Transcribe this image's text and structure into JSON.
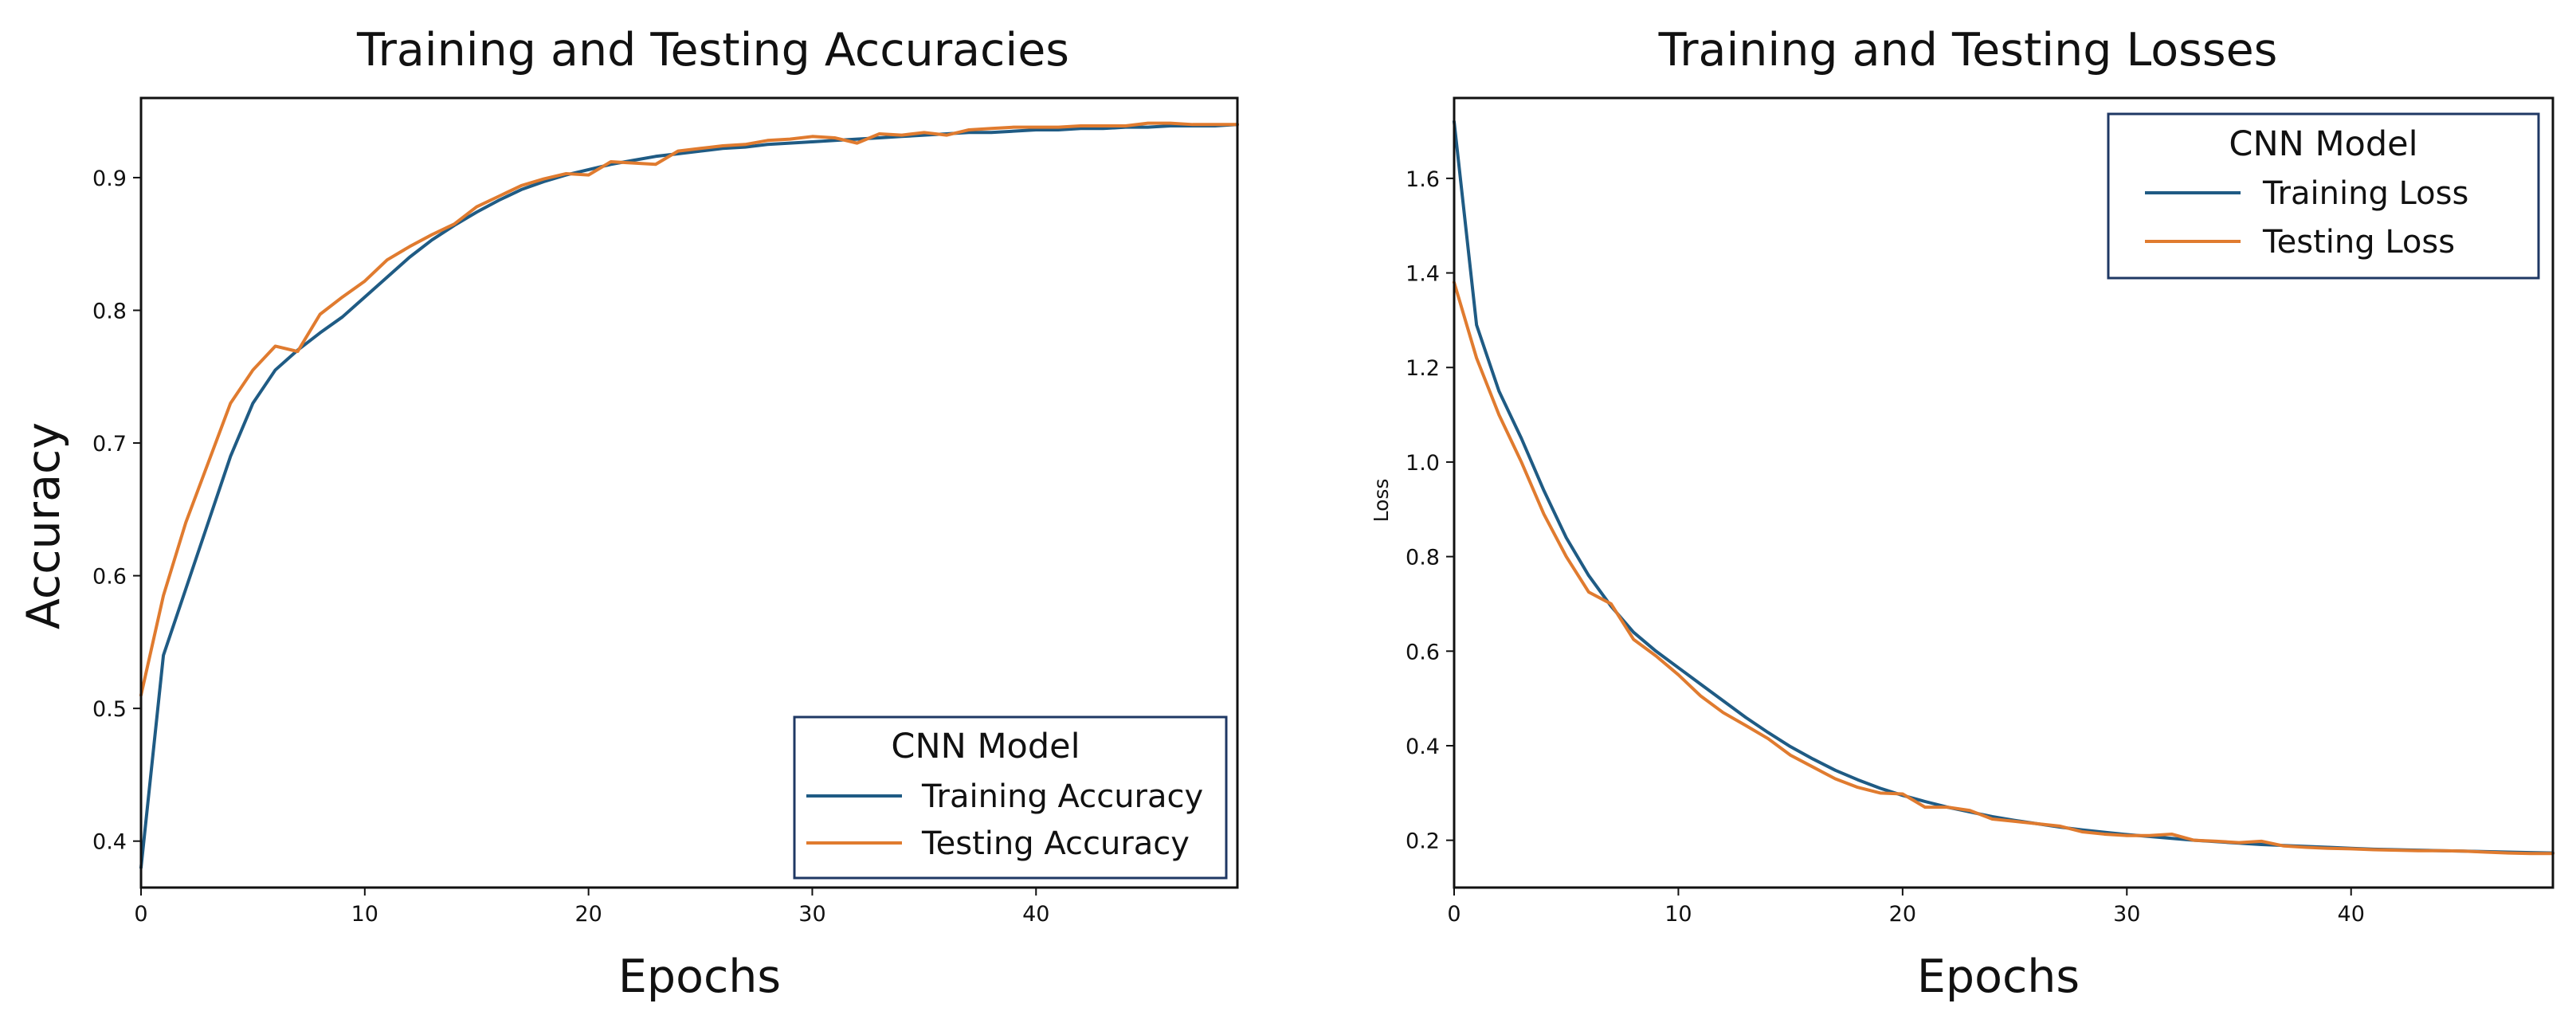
{
  "chart_data": [
    {
      "type": "line",
      "title": "Training and Testing Accuracies",
      "xlabel": "Epochs",
      "ylabel": "Accuracy",
      "xlim": [
        0,
        49
      ],
      "ylim": [
        0.365,
        0.96
      ],
      "xticks": [
        0,
        10,
        20,
        30,
        40
      ],
      "yticks": [
        0.4,
        0.5,
        0.6,
        0.7,
        0.8,
        0.9
      ],
      "grid": false,
      "legend_position": "lower-right",
      "legend_title": "CNN Model",
      "x": [
        0,
        1,
        2,
        3,
        4,
        5,
        6,
        7,
        8,
        9,
        10,
        11,
        12,
        13,
        14,
        15,
        16,
        17,
        18,
        19,
        20,
        21,
        22,
        23,
        24,
        25,
        26,
        27,
        28,
        29,
        30,
        31,
        32,
        33,
        34,
        35,
        36,
        37,
        38,
        39,
        40,
        41,
        42,
        43,
        44,
        45,
        46,
        47,
        48,
        49
      ],
      "series": [
        {
          "name": "Training Accuracy",
          "color": "#1f5b84",
          "values": [
            0.38,
            0.54,
            0.59,
            0.64,
            0.69,
            0.73,
            0.755,
            0.77,
            0.783,
            0.795,
            0.81,
            0.825,
            0.84,
            0.853,
            0.864,
            0.874,
            0.883,
            0.891,
            0.897,
            0.902,
            0.906,
            0.91,
            0.913,
            0.916,
            0.918,
            0.92,
            0.922,
            0.923,
            0.925,
            0.926,
            0.927,
            0.928,
            0.929,
            0.93,
            0.931,
            0.932,
            0.933,
            0.934,
            0.934,
            0.935,
            0.936,
            0.936,
            0.937,
            0.937,
            0.938,
            0.938,
            0.939,
            0.939,
            0.939,
            0.94
          ]
        },
        {
          "name": "Testing Accuracy",
          "color": "#e07b2f",
          "values": [
            0.51,
            0.585,
            0.64,
            0.685,
            0.73,
            0.755,
            0.773,
            0.769,
            0.797,
            0.81,
            0.822,
            0.838,
            0.848,
            0.857,
            0.865,
            0.878,
            0.886,
            0.894,
            0.899,
            0.903,
            0.902,
            0.912,
            0.911,
            0.91,
            0.92,
            0.922,
            0.924,
            0.925,
            0.928,
            0.929,
            0.931,
            0.93,
            0.926,
            0.933,
            0.932,
            0.934,
            0.932,
            0.936,
            0.937,
            0.938,
            0.938,
            0.938,
            0.939,
            0.939,
            0.939,
            0.941,
            0.941,
            0.94,
            0.94,
            0.94
          ]
        }
      ]
    },
    {
      "type": "line",
      "title": "Training and Testing Losses",
      "xlabel": "Epochs",
      "ylabel": "Loss",
      "xlim": [
        0,
        49
      ],
      "ylim": [
        0.1,
        1.77
      ],
      "xticks": [
        0,
        10,
        20,
        30,
        40
      ],
      "yticks": [
        0.2,
        0.4,
        0.6,
        0.8,
        1.0,
        1.2,
        1.4,
        1.6
      ],
      "grid": false,
      "legend_position": "top-right",
      "legend_title": "CNN Model",
      "x": [
        0,
        1,
        2,
        3,
        4,
        5,
        6,
        7,
        8,
        9,
        10,
        11,
        12,
        13,
        14,
        15,
        16,
        17,
        18,
        19,
        20,
        21,
        22,
        23,
        24,
        25,
        26,
        27,
        28,
        29,
        30,
        31,
        32,
        33,
        34,
        35,
        36,
        37,
        38,
        39,
        40,
        41,
        42,
        43,
        44,
        45,
        46,
        47,
        48,
        49
      ],
      "series": [
        {
          "name": "Training Loss",
          "color": "#1f5b84",
          "values": [
            1.72,
            1.29,
            1.15,
            1.05,
            0.94,
            0.84,
            0.76,
            0.695,
            0.64,
            0.6,
            0.565,
            0.53,
            0.495,
            0.46,
            0.428,
            0.398,
            0.372,
            0.348,
            0.328,
            0.31,
            0.295,
            0.282,
            0.27,
            0.26,
            0.25,
            0.242,
            0.235,
            0.228,
            0.222,
            0.217,
            0.212,
            0.208,
            0.204,
            0.2,
            0.197,
            0.194,
            0.191,
            0.189,
            0.187,
            0.185,
            0.183,
            0.181,
            0.18,
            0.179,
            0.178,
            0.177,
            0.176,
            0.175,
            0.174,
            0.173
          ]
        },
        {
          "name": "Testing Loss",
          "color": "#e07b2f",
          "values": [
            1.38,
            1.22,
            1.1,
            1.0,
            0.89,
            0.8,
            0.725,
            0.7,
            0.625,
            0.59,
            0.55,
            0.505,
            0.47,
            0.443,
            0.415,
            0.38,
            0.355,
            0.33,
            0.312,
            0.3,
            0.298,
            0.27,
            0.27,
            0.263,
            0.245,
            0.24,
            0.235,
            0.23,
            0.218,
            0.213,
            0.21,
            0.21,
            0.213,
            0.2,
            0.198,
            0.195,
            0.198,
            0.188,
            0.185,
            0.183,
            0.182,
            0.18,
            0.179,
            0.178,
            0.178,
            0.177,
            0.175,
            0.173,
            0.172,
            0.172
          ]
        }
      ]
    }
  ]
}
